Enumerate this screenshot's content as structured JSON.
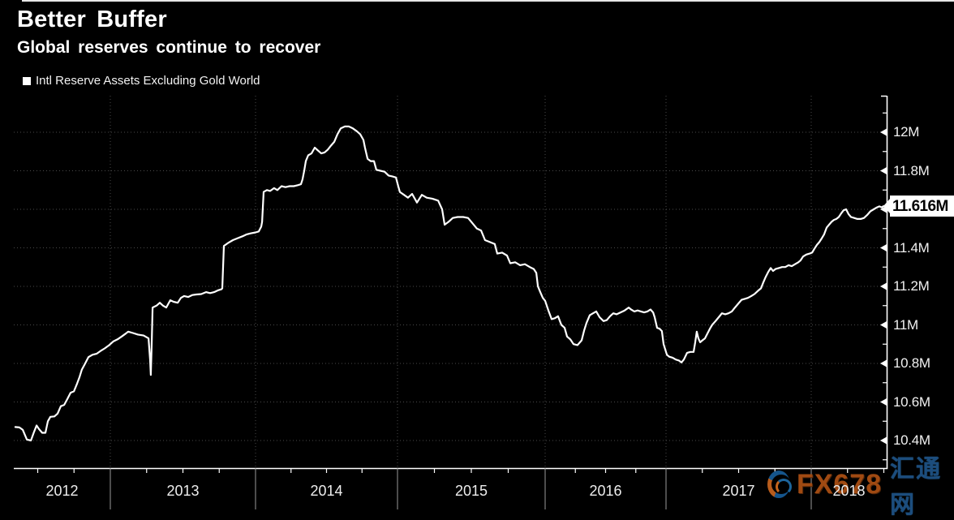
{
  "header": {
    "title": "Better Buffer",
    "subtitle": "Global reserves continue to recover"
  },
  "legend": {
    "marker_color": "#ffffff",
    "label": "Intl Reserve Assets Excluding Gold World"
  },
  "callout": {
    "text": "11.616M",
    "bg": "#ffffff",
    "fg": "#000000"
  },
  "watermark": {
    "brand": "FX678",
    "site": "汇通网",
    "brand_color": "#a04a12",
    "site_color": "#1c4d7d"
  },
  "colors": {
    "background": "#000000",
    "line": "#ffffff",
    "grid": "#4a4a4a",
    "axis": "#ffffff",
    "label": "#f0f0f0"
  },
  "chart_data": {
    "type": "line",
    "title": "Better Buffer",
    "subtitle": "Global reserves continue to recover",
    "series_name": "Intl Reserve Assets Excluding Gold World",
    "unit": "M",
    "grid": "dotted",
    "legend_position": "top-left",
    "y_axis_position": "right",
    "ylim": [
      10.26,
      12.19
    ],
    "xlim_years": [
      2012.35,
      2018.5
    ],
    "y_ticks": [
      {
        "value": 12.0,
        "label": "12M"
      },
      {
        "value": 11.8,
        "label": "11.8M"
      },
      {
        "value": 11.6,
        "label": ""
      },
      {
        "value": 11.4,
        "label": "11.4M"
      },
      {
        "value": 11.2,
        "label": "11.2M"
      },
      {
        "value": 11.0,
        "label": "11M"
      },
      {
        "value": 10.8,
        "label": "10.8M"
      },
      {
        "value": 10.6,
        "label": "10.6M"
      },
      {
        "value": 10.4,
        "label": "10.4M"
      }
    ],
    "y_minor_tick_step": 0.1,
    "x_years": [
      {
        "year": 2012,
        "label": "2012"
      },
      {
        "year": 2013,
        "label": "2013"
      },
      {
        "year": 2014,
        "label": "2014"
      },
      {
        "year": 2015,
        "label": "2015"
      },
      {
        "year": 2016,
        "label": "2016"
      },
      {
        "year": 2017,
        "label": "2017"
      },
      {
        "year": 2018,
        "label": "2018"
      }
    ],
    "x_minor_tick": "quarterly",
    "last_point": {
      "t": 2018.497,
      "value": 11.616,
      "label": "11.616M"
    },
    "points": [
      [
        2012.346,
        10.47
      ],
      [
        2012.374,
        10.468
      ],
      [
        2012.397,
        10.455
      ],
      [
        2012.425,
        10.405
      ],
      [
        2012.453,
        10.4
      ],
      [
        2012.475,
        10.445
      ],
      [
        2012.492,
        10.478
      ],
      [
        2012.508,
        10.46
      ],
      [
        2012.531,
        10.44
      ],
      [
        2012.553,
        10.44
      ],
      [
        2012.57,
        10.5
      ],
      [
        2012.587,
        10.523
      ],
      [
        2012.615,
        10.525
      ],
      [
        2012.637,
        10.54
      ],
      [
        2012.659,
        10.578
      ],
      [
        2012.682,
        10.585
      ],
      [
        2012.704,
        10.615
      ],
      [
        2012.726,
        10.648
      ],
      [
        2012.749,
        10.655
      ],
      [
        2012.771,
        10.695
      ],
      [
        2012.788,
        10.73
      ],
      [
        2012.804,
        10.768
      ],
      [
        2012.827,
        10.8
      ],
      [
        2012.849,
        10.833
      ],
      [
        2012.877,
        10.845
      ],
      [
        2012.905,
        10.85
      ],
      [
        2012.933,
        10.865
      ],
      [
        2012.961,
        10.878
      ],
      [
        2012.989,
        10.893
      ],
      [
        2013.022,
        10.915
      ],
      [
        2013.05,
        10.925
      ],
      [
        2013.078,
        10.94
      ],
      [
        2013.106,
        10.955
      ],
      [
        2013.123,
        10.965
      ],
      [
        2013.156,
        10.958
      ],
      [
        2013.19,
        10.95
      ],
      [
        2013.229,
        10.945
      ],
      [
        2013.263,
        10.93
      ],
      [
        2013.274,
        10.82
      ],
      [
        2013.279,
        10.74
      ],
      [
        2013.285,
        10.9
      ],
      [
        2013.291,
        11.09
      ],
      [
        2013.318,
        11.1
      ],
      [
        2013.341,
        11.115
      ],
      [
        2013.363,
        11.1
      ],
      [
        2013.385,
        11.09
      ],
      [
        2013.413,
        11.128
      ],
      [
        2013.436,
        11.12
      ],
      [
        2013.464,
        11.115
      ],
      [
        2013.486,
        11.14
      ],
      [
        2013.508,
        11.15
      ],
      [
        2013.536,
        11.145
      ],
      [
        2013.564,
        11.155
      ],
      [
        2013.592,
        11.158
      ],
      [
        2013.626,
        11.16
      ],
      [
        2013.659,
        11.17
      ],
      [
        2013.687,
        11.165
      ],
      [
        2013.715,
        11.17
      ],
      [
        2013.743,
        11.18
      ],
      [
        2013.765,
        11.185
      ],
      [
        2013.771,
        11.19
      ],
      [
        2013.782,
        11.41
      ],
      [
        2013.81,
        11.425
      ],
      [
        2013.844,
        11.44
      ],
      [
        2013.877,
        11.45
      ],
      [
        2013.911,
        11.46
      ],
      [
        2013.939,
        11.47
      ],
      [
        2013.966,
        11.475
      ],
      [
        2014.0,
        11.48
      ],
      [
        2014.023,
        11.485
      ],
      [
        2014.04,
        11.51
      ],
      [
        2014.046,
        11.535
      ],
      [
        2014.057,
        11.69
      ],
      [
        2014.08,
        11.7
      ],
      [
        2014.103,
        11.695
      ],
      [
        2014.131,
        11.71
      ],
      [
        2014.154,
        11.7
      ],
      [
        2014.183,
        11.72
      ],
      [
        2014.211,
        11.715
      ],
      [
        2014.24,
        11.72
      ],
      [
        2014.269,
        11.72
      ],
      [
        2014.297,
        11.725
      ],
      [
        2014.32,
        11.73
      ],
      [
        2014.331,
        11.755
      ],
      [
        2014.343,
        11.8
      ],
      [
        2014.354,
        11.85
      ],
      [
        2014.371,
        11.88
      ],
      [
        2014.394,
        11.89
      ],
      [
        2014.417,
        11.92
      ],
      [
        2014.44,
        11.905
      ],
      [
        2014.463,
        11.89
      ],
      [
        2014.486,
        11.895
      ],
      [
        2014.509,
        11.91
      ],
      [
        2014.531,
        11.93
      ],
      [
        2014.554,
        11.95
      ],
      [
        2014.577,
        11.99
      ],
      [
        2014.6,
        12.02
      ],
      [
        2014.629,
        12.03
      ],
      [
        2014.657,
        12.03
      ],
      [
        2014.686,
        12.02
      ],
      [
        2014.714,
        12.005
      ],
      [
        2014.737,
        11.99
      ],
      [
        2014.76,
        11.96
      ],
      [
        2014.771,
        11.92
      ],
      [
        2014.789,
        11.862
      ],
      [
        2014.811,
        11.85
      ],
      [
        2014.834,
        11.85
      ],
      [
        2014.851,
        11.805
      ],
      [
        2014.88,
        11.8
      ],
      [
        2014.909,
        11.795
      ],
      [
        2014.937,
        11.775
      ],
      [
        2014.966,
        11.77
      ],
      [
        2014.989,
        11.765
      ],
      [
        2015.005,
        11.72
      ],
      [
        2015.016,
        11.69
      ],
      [
        2015.044,
        11.675
      ],
      [
        2015.071,
        11.66
      ],
      [
        2015.099,
        11.68
      ],
      [
        2015.132,
        11.635
      ],
      [
        2015.165,
        11.675
      ],
      [
        2015.198,
        11.66
      ],
      [
        2015.236,
        11.655
      ],
      [
        2015.275,
        11.645
      ],
      [
        2015.302,
        11.6
      ],
      [
        2015.319,
        11.52
      ],
      [
        2015.346,
        11.535
      ],
      [
        2015.374,
        11.555
      ],
      [
        2015.407,
        11.56
      ],
      [
        2015.445,
        11.56
      ],
      [
        2015.478,
        11.555
      ],
      [
        2015.505,
        11.53
      ],
      [
        2015.538,
        11.5
      ],
      [
        2015.566,
        11.49
      ],
      [
        2015.593,
        11.44
      ],
      [
        2015.626,
        11.43
      ],
      [
        2015.659,
        11.42
      ],
      [
        2015.676,
        11.37
      ],
      [
        2015.709,
        11.375
      ],
      [
        2015.742,
        11.36
      ],
      [
        2015.764,
        11.32
      ],
      [
        2015.797,
        11.325
      ],
      [
        2015.83,
        11.31
      ],
      [
        2015.863,
        11.315
      ],
      [
        2015.896,
        11.3
      ],
      [
        2015.923,
        11.29
      ],
      [
        2015.94,
        11.27
      ],
      [
        2015.951,
        11.2
      ],
      [
        2015.967,
        11.17
      ],
      [
        2015.984,
        11.14
      ],
      [
        2016.0,
        11.125
      ],
      [
        2016.027,
        11.075
      ],
      [
        2016.054,
        11.03
      ],
      [
        2016.081,
        11.035
      ],
      [
        2016.107,
        11.045
      ],
      [
        2016.134,
        11.0
      ],
      [
        2016.161,
        10.985
      ],
      [
        2016.181,
        10.94
      ],
      [
        2016.208,
        10.925
      ],
      [
        2016.235,
        10.9
      ],
      [
        2016.268,
        10.895
      ],
      [
        2016.302,
        10.92
      ],
      [
        2016.322,
        10.97
      ],
      [
        2016.342,
        11.01
      ],
      [
        2016.369,
        11.05
      ],
      [
        2016.396,
        11.06
      ],
      [
        2016.423,
        11.07
      ],
      [
        2016.45,
        11.04
      ],
      [
        2016.483,
        11.02
      ],
      [
        2016.51,
        11.025
      ],
      [
        2016.537,
        11.045
      ],
      [
        2016.564,
        11.06
      ],
      [
        2016.591,
        11.055
      ],
      [
        2016.624,
        11.065
      ],
      [
        2016.658,
        11.075
      ],
      [
        2016.691,
        11.09
      ],
      [
        2016.711,
        11.08
      ],
      [
        2016.738,
        11.07
      ],
      [
        2016.765,
        11.075
      ],
      [
        2016.792,
        11.07
      ],
      [
        2016.819,
        11.065
      ],
      [
        2016.846,
        11.07
      ],
      [
        2016.872,
        11.08
      ],
      [
        2016.893,
        11.065
      ],
      [
        2016.906,
        11.04
      ],
      [
        2016.926,
        10.985
      ],
      [
        2016.946,
        10.98
      ],
      [
        2016.966,
        10.968
      ],
      [
        2016.98,
        10.9
      ],
      [
        2017.006,
        10.845
      ],
      [
        2017.022,
        10.835
      ],
      [
        2017.045,
        10.83
      ],
      [
        2017.067,
        10.82
      ],
      [
        2017.089,
        10.815
      ],
      [
        2017.106,
        10.805
      ],
      [
        2017.123,
        10.82
      ],
      [
        2017.145,
        10.855
      ],
      [
        2017.168,
        10.86
      ],
      [
        2017.19,
        10.86
      ],
      [
        2017.201,
        10.91
      ],
      [
        2017.212,
        10.965
      ],
      [
        2017.223,
        10.93
      ],
      [
        2017.235,
        10.91
      ],
      [
        2017.251,
        10.92
      ],
      [
        2017.268,
        10.93
      ],
      [
        2017.285,
        10.955
      ],
      [
        2017.302,
        10.98
      ],
      [
        2017.318,
        11.0
      ],
      [
        2017.341,
        11.02
      ],
      [
        2017.363,
        11.04
      ],
      [
        2017.385,
        11.06
      ],
      [
        2017.408,
        11.055
      ],
      [
        2017.43,
        11.06
      ],
      [
        2017.453,
        11.07
      ],
      [
        2017.475,
        11.09
      ],
      [
        2017.497,
        11.11
      ],
      [
        2017.52,
        11.13
      ],
      [
        2017.542,
        11.135
      ],
      [
        2017.564,
        11.14
      ],
      [
        2017.587,
        11.15
      ],
      [
        2017.609,
        11.16
      ],
      [
        2017.631,
        11.175
      ],
      [
        2017.654,
        11.19
      ],
      [
        2017.67,
        11.22
      ],
      [
        2017.687,
        11.25
      ],
      [
        2017.704,
        11.275
      ],
      [
        2017.721,
        11.295
      ],
      [
        2017.737,
        11.28
      ],
      [
        2017.754,
        11.29
      ],
      [
        2017.777,
        11.295
      ],
      [
        2017.799,
        11.3
      ],
      [
        2017.821,
        11.3
      ],
      [
        2017.844,
        11.31
      ],
      [
        2017.866,
        11.305
      ],
      [
        2017.888,
        11.315
      ],
      [
        2017.911,
        11.325
      ],
      [
        2017.927,
        11.335
      ],
      [
        2017.944,
        11.355
      ],
      [
        2017.966,
        11.365
      ],
      [
        2017.989,
        11.37
      ],
      [
        2018.006,
        11.375
      ],
      [
        2018.022,
        11.395
      ],
      [
        2018.039,
        11.415
      ],
      [
        2018.056,
        11.43
      ],
      [
        2018.073,
        11.45
      ],
      [
        2018.089,
        11.47
      ],
      [
        2018.106,
        11.505
      ],
      [
        2018.123,
        11.52
      ],
      [
        2018.14,
        11.535
      ],
      [
        2018.156,
        11.545
      ],
      [
        2018.173,
        11.55
      ],
      [
        2018.19,
        11.56
      ],
      [
        2018.207,
        11.58
      ],
      [
        2018.223,
        11.595
      ],
      [
        2018.24,
        11.6
      ],
      [
        2018.257,
        11.575
      ],
      [
        2018.274,
        11.56
      ],
      [
        2018.296,
        11.555
      ],
      [
        2018.318,
        11.55
      ],
      [
        2018.341,
        11.55
      ],
      [
        2018.363,
        11.555
      ],
      [
        2018.385,
        11.57
      ],
      [
        2018.408,
        11.59
      ],
      [
        2018.43,
        11.6
      ],
      [
        2018.453,
        11.61
      ],
      [
        2018.469,
        11.615
      ],
      [
        2018.486,
        11.61
      ],
      [
        2018.497,
        11.616
      ]
    ]
  }
}
